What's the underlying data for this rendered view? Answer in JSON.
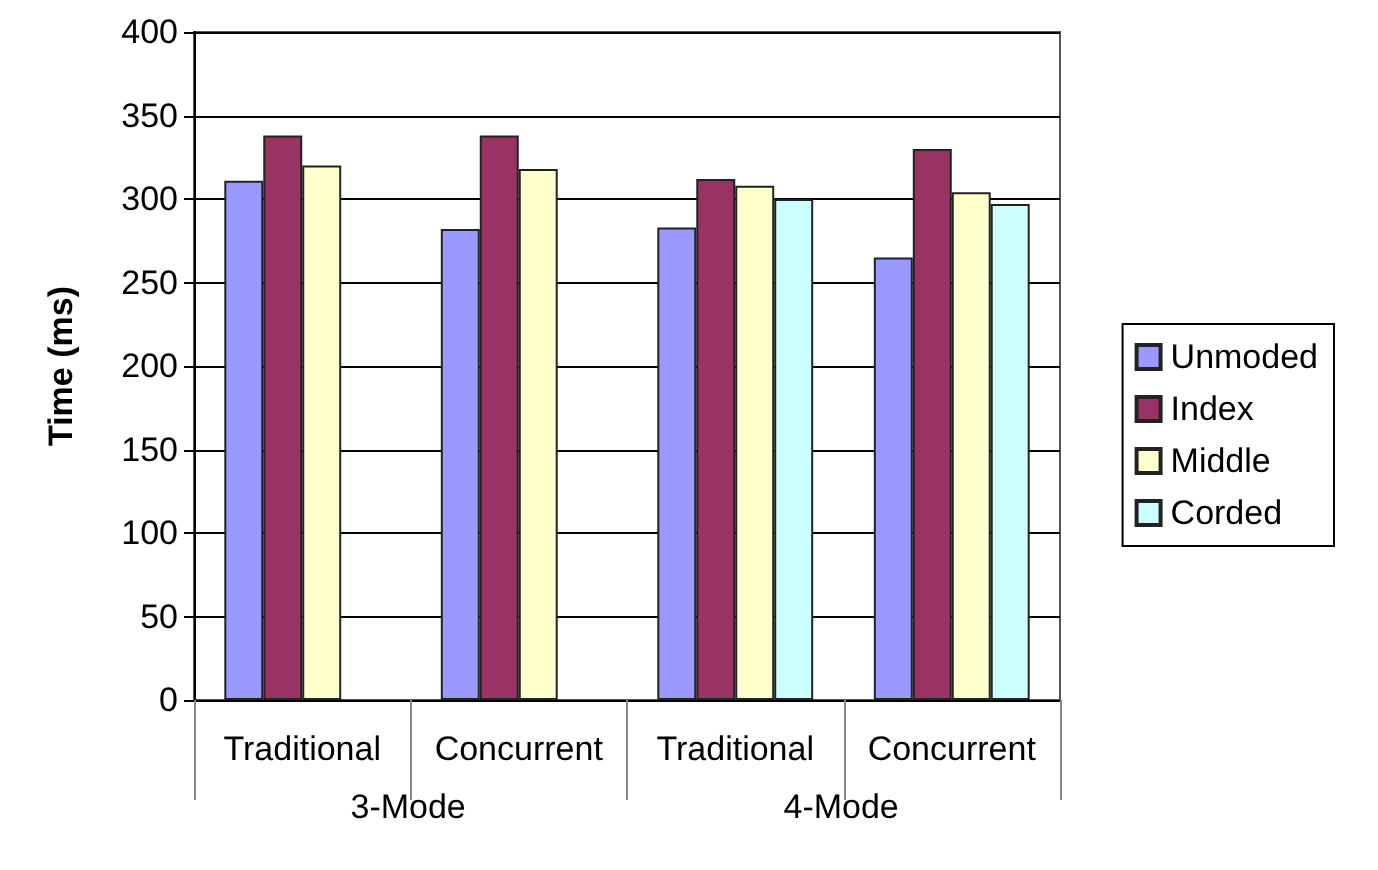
{
  "chart_data": {
    "type": "bar",
    "ylabel": "Time (ms)",
    "categories": [
      "Traditional",
      "Concurrent",
      "Traditional",
      "Concurrent"
    ],
    "series": [
      {
        "name": "Unmoded",
        "color": "#9999ff",
        "values": [
          311,
          282,
          283,
          265
        ]
      },
      {
        "name": "Index",
        "color": "#993366",
        "values": [
          338,
          338,
          312,
          330
        ]
      },
      {
        "name": "Middle",
        "color": "#ffffcc",
        "values": [
          320,
          318,
          308,
          304
        ]
      },
      {
        "name": "Corded",
        "color": "#ccffff",
        "values": [
          null,
          null,
          300,
          297
        ]
      }
    ],
    "annotations": [
      "3-Mode",
      "4-Mode"
    ],
    "ylim": [
      0,
      400
    ],
    "yticks": [
      0,
      50,
      100,
      150,
      200,
      250,
      300,
      350,
      400
    ],
    "grid": "y",
    "legend": "right"
  }
}
